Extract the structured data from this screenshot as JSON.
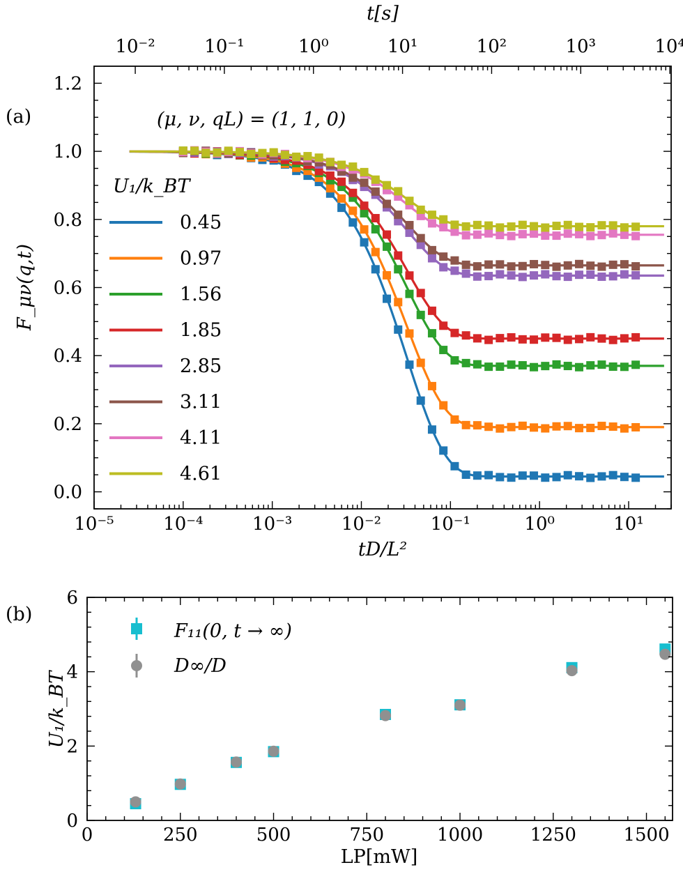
{
  "chart_data": [
    {
      "panel": "(a)",
      "type": "line",
      "annotation": "(μ, ν, qL) = (1, 1, 0)",
      "xlabel": "tD/L²",
      "ylabel": "F_μν(q,t)",
      "xlabel_top": "t[s]",
      "xscale": "log",
      "xlim": [
        1e-05,
        30
      ],
      "ylim": [
        -0.05,
        1.25
      ],
      "x_ticks": [
        "10⁻⁵",
        "10⁻⁴",
        "10⁻³",
        "10⁻²",
        "10⁻¹",
        "10⁰",
        "10¹"
      ],
      "top_ticks": [
        "10⁻²",
        "10⁻¹",
        "10⁰",
        "10¹",
        "10²",
        "10³",
        "10⁴"
      ],
      "y_ticks": [
        "0.0",
        "0.2",
        "0.4",
        "0.6",
        "0.8",
        "1.0",
        "1.2"
      ],
      "legend_title": "U₁/k_BT",
      "legend_position": "left",
      "grid": false,
      "t_seconds_per_unit": 345,
      "data_x_range": [
        0.0001,
        12
      ],
      "line_x_range": [
        2.5e-05,
        25
      ],
      "marker": "square",
      "series": [
        {
          "name": "0.45",
          "color": "#1f77b4",
          "plateau": 0.045
        },
        {
          "name": "0.97",
          "color": "#ff7f0e",
          "plateau": 0.19
        },
        {
          "name": "1.56",
          "color": "#2ca02c",
          "plateau": 0.37
        },
        {
          "name": "1.85",
          "color": "#d62728",
          "plateau": 0.45
        },
        {
          "name": "2.85",
          "color": "#9467bd",
          "plateau": 0.635
        },
        {
          "name": "3.11",
          "color": "#8c564b",
          "plateau": 0.665
        },
        {
          "name": "4.11",
          "color": "#e377c2",
          "plateau": 0.755
        },
        {
          "name": "4.61",
          "color": "#bcbd22",
          "plateau": 0.78
        }
      ]
    },
    {
      "panel": "(b)",
      "type": "scatter",
      "xlabel": "LP[mW]",
      "ylabel": "U₁/k_BT",
      "xlim": [
        0,
        1570
      ],
      "ylim": [
        0,
        6
      ],
      "x_ticks": [
        "0",
        "250",
        "500",
        "750",
        "1000",
        "1250",
        "1500"
      ],
      "y_ticks": [
        "0",
        "2",
        "4",
        "6"
      ],
      "legend_position": "upper-left",
      "grid": false,
      "series": [
        {
          "name": "F₁₁(0, t → ∞)",
          "color": "#17becf",
          "marker": "square",
          "x": [
            130,
            250,
            400,
            500,
            800,
            1000,
            1300,
            1550
          ],
          "y": [
            0.45,
            0.97,
            1.56,
            1.85,
            2.85,
            3.11,
            4.11,
            4.61
          ]
        },
        {
          "name": "D∞/D",
          "color": "#909090",
          "marker": "circle",
          "x": [
            130,
            250,
            400,
            500,
            800,
            1000,
            1300,
            1550
          ],
          "y": [
            0.5,
            0.98,
            1.57,
            1.86,
            2.82,
            3.1,
            4.03,
            4.47
          ]
        }
      ]
    }
  ]
}
